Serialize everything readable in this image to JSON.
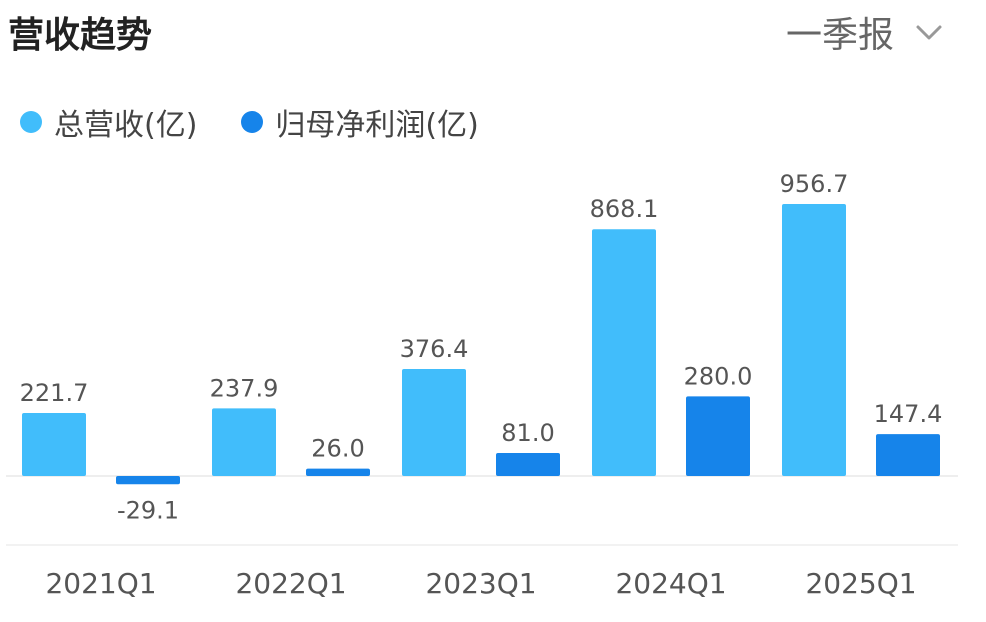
{
  "header": {
    "title": "营收趋势",
    "period_label": "一季报"
  },
  "colors": {
    "revenue": "#41bdfb",
    "profit": "#1684ea"
  },
  "chart_data": {
    "type": "bar",
    "categories": [
      "2021Q1",
      "2022Q1",
      "2023Q1",
      "2024Q1",
      "2025Q1"
    ],
    "series": [
      {
        "name": "总营收(亿)",
        "values": [
          221.7,
          237.9,
          376.4,
          868.1,
          956.7
        ],
        "labels": [
          "221.7",
          "237.9",
          "376.4",
          "868.1",
          "956.7"
        ]
      },
      {
        "name": "归母净利润(亿)",
        "values": [
          -29.1,
          26.0,
          81.0,
          280.0,
          147.4
        ],
        "labels": [
          "-29.1",
          "26.0",
          "81.0",
          "280.0",
          "147.4"
        ]
      }
    ],
    "legend": "top-left"
  }
}
